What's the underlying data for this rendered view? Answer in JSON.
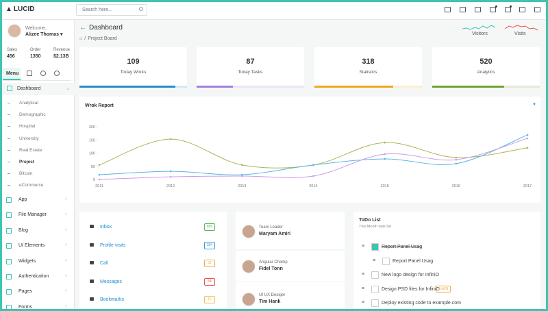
{
  "logo": "LUCID",
  "search_placeholder": "Search here...",
  "user": {
    "welcome": "Welcome,",
    "name": "Alizee Thomas ▾"
  },
  "stats": [
    {
      "label": "Sales",
      "value": "456"
    },
    {
      "label": "Order",
      "value": "1350"
    },
    {
      "label": "Revenue",
      "value": "$2.13B"
    }
  ],
  "menu_tab": "Menu",
  "menu": {
    "active": "Dashboard",
    "sub": [
      {
        "label": "Analytical"
      },
      {
        "label": "Demographic"
      },
      {
        "label": "Hospital"
      },
      {
        "label": "University"
      },
      {
        "label": "Real Estate"
      },
      {
        "label": "Project",
        "current": true
      },
      {
        "label": "Bitcoin"
      },
      {
        "label": "eCommerce"
      }
    ],
    "items": [
      "App",
      "File Manager",
      "Blog",
      "UI Elements",
      "Widgets",
      "Authentication",
      "Pages",
      "Forms"
    ]
  },
  "header": {
    "title": "Dashboard",
    "breadcrumb": "Project Board"
  },
  "sparklines": [
    "Visitors",
    "Visits"
  ],
  "cards": [
    {
      "value": 109,
      "label": "Today Works",
      "progress": 89,
      "color": "#1f8ed1"
    },
    {
      "value": 87,
      "label": "Today Tasks",
      "progress": 34,
      "color": "#a37fe0"
    },
    {
      "value": 318,
      "label": "Statistics",
      "progress": 73,
      "color": "#f0a81c"
    },
    {
      "value": 520,
      "label": "Analytics",
      "progress": 67,
      "color": "#71a12e"
    }
  ],
  "chart_data": {
    "type": "line",
    "title": "Wrok Report",
    "categories": [
      "2011",
      "2012",
      "2013",
      "2014",
      "2015",
      "2016",
      "2017"
    ],
    "series": [
      {
        "color": "#aab556",
        "values": [
          55,
          153,
          55,
          55,
          140,
          83,
          120
        ]
      },
      {
        "color": "#5ab6e8",
        "values": [
          18,
          31,
          18,
          55,
          78,
          60,
          169
        ]
      },
      {
        "color": "#c99be8",
        "values": [
          0,
          10,
          13,
          13,
          96,
          75,
          156
        ]
      }
    ],
    "ylim": [
      0,
      200
    ],
    "yticks": [
      0,
      50,
      100,
      150,
      200
    ],
    "grid": false
  },
  "contacts": [
    {
      "label": "Inbox",
      "count": 856,
      "color": "#5cb85c"
    },
    {
      "label": "Profile visits",
      "count": 364,
      "color": "#3a9ad9"
    },
    {
      "label": "Call",
      "count": 32,
      "color": "#f0ad4e"
    },
    {
      "label": "Messages",
      "count": 54,
      "color": "#e8504f"
    },
    {
      "label": "Bookmarks",
      "count": 16,
      "color": "#f0c04e"
    }
  ],
  "team": [
    {
      "role": "Team Leader",
      "name": "Maryam Amiri"
    },
    {
      "role": "Angular Champ",
      "name": "Fidel Tonn"
    },
    {
      "role": "UI UX Desiger",
      "name": "Tim Hank"
    }
  ],
  "todo": {
    "title": "ToDo List",
    "subtitle": "This Month task list",
    "items": [
      {
        "text": "Report Panel Usag",
        "done": true
      },
      {
        "text": "Report Panel Usag",
        "done": false,
        "indent": 1
      },
      {
        "text": "New logo design for InfiniO",
        "done": false
      },
      {
        "text": "Design PSD files for InfiniO",
        "done": false,
        "tag": "FutEN"
      },
      {
        "text": "Deploy existing code to example.com",
        "done": false
      }
    ]
  }
}
